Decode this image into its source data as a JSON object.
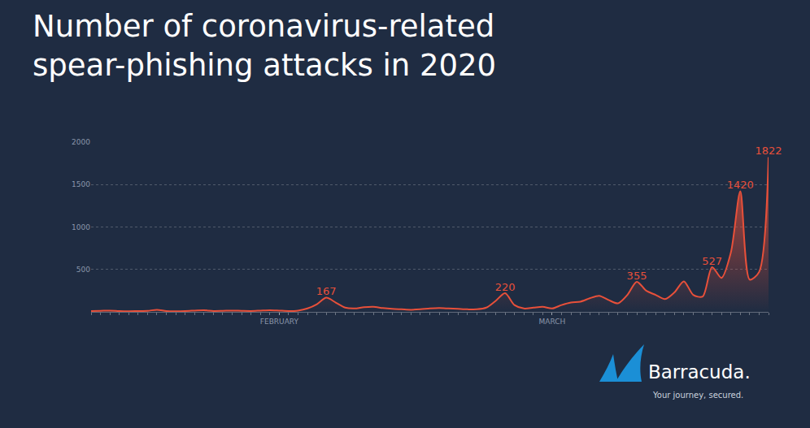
{
  "chart_data": {
    "type": "line",
    "title": "Number of coronavirus-related\nspear-phishing attacks in 2020",
    "categories": [
      null,
      null,
      null,
      null,
      null,
      null,
      null,
      null,
      null,
      null,
      null,
      null,
      null,
      null,
      null,
      null,
      null,
      null,
      null,
      null,
      "FEBRUARY",
      null,
      null,
      null,
      null,
      null,
      null,
      null,
      null,
      null,
      null,
      null,
      null,
      null,
      null,
      null,
      null,
      null,
      null,
      null,
      null,
      null,
      null,
      null,
      null,
      null,
      null,
      null,
      null,
      "MARCH",
      null,
      null,
      null,
      null,
      null,
      null,
      null,
      null,
      null,
      null,
      null,
      null,
      null,
      null,
      null,
      null,
      null,
      null,
      null,
      null,
      null,
      null,
      null
    ],
    "values": [
      10,
      12,
      15,
      10,
      8,
      10,
      12,
      25,
      10,
      8,
      10,
      15,
      20,
      10,
      12,
      15,
      12,
      10,
      15,
      20,
      15,
      10,
      15,
      40,
      90,
      167,
      110,
      50,
      40,
      55,
      60,
      45,
      35,
      30,
      25,
      30,
      40,
      45,
      40,
      35,
      30,
      30,
      50,
      130,
      220,
      80,
      40,
      50,
      60,
      40,
      80,
      110,
      120,
      160,
      190,
      140,
      100,
      200,
      355,
      250,
      200,
      150,
      230,
      360,
      200,
      180,
      527,
      400,
      700,
      1420,
      380,
      470,
      1822
    ],
    "value_labels": [
      null,
      null,
      null,
      null,
      null,
      null,
      null,
      null,
      null,
      null,
      null,
      null,
      null,
      null,
      null,
      null,
      null,
      null,
      null,
      null,
      null,
      null,
      null,
      null,
      null,
      "167",
      null,
      null,
      null,
      null,
      null,
      null,
      null,
      null,
      null,
      null,
      null,
      null,
      null,
      null,
      null,
      null,
      null,
      null,
      "220",
      null,
      null,
      null,
      null,
      null,
      null,
      null,
      null,
      null,
      null,
      null,
      null,
      null,
      "355",
      null,
      null,
      null,
      null,
      null,
      null,
      null,
      "527",
      null,
      null,
      "1420",
      null,
      null,
      "1822"
    ],
    "data_labels": true,
    "color": "#e8503a",
    "ylim": [
      0,
      2000
    ],
    "yticks": [
      500,
      1000,
      1500,
      2000
    ],
    "grid": true,
    "annotations": [
      "Barracuda.",
      "Your journey, secured."
    ]
  }
}
